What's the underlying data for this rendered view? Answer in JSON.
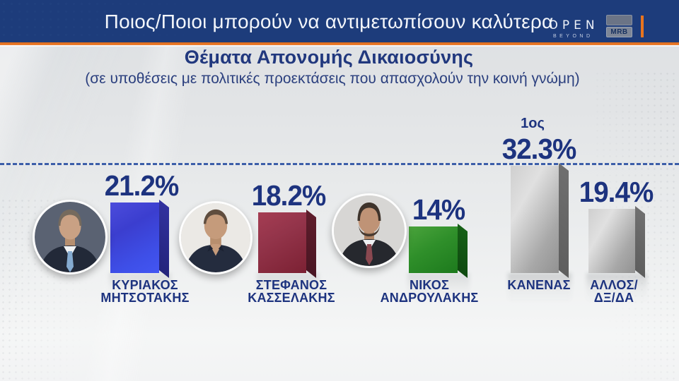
{
  "header": {
    "title": "Ποιος/Ποιοι  μπορούν να αντιμετωπίσουν καλύτερα",
    "open_logo": {
      "text": "OPEN",
      "subtext": "BEYOND"
    },
    "mrb_label": "MRB",
    "accent_color": "#e8741e",
    "background_color": "#1d3c7b"
  },
  "question": {
    "title": "Θέματα Απονομής Δικαιοσύνης",
    "subtitle": "(σε υποθέσεις με πολιτικές προεκτάσεις που απασχολούν την κοινή γνώμη)"
  },
  "chart_data": {
    "type": "bar",
    "title": "Θέματα Απονομής Δικαιοσύνης",
    "subtitle": "(σε υποθέσεις με πολιτικές προεκτάσεις που απασχολούν την κοινή γνώμη)",
    "categories": [
      "ΚΥΡΙΑΚΟΣ ΜΗΤΣΟΤΑΚΗΣ",
      "ΣΤΕΦΑΝΟΣ ΚΑΣΣΕΛΑΚΗΣ",
      "ΝΙΚΟΣ ΑΝΔΡΟΥΛΑΚΗΣ",
      "ΚΑΝΕΝΑΣ",
      "ΑΛΛΟΣ/ΔΞ/ΔΑ"
    ],
    "values": [
      21.2,
      18.2,
      14,
      32.3,
      19.4
    ],
    "value_labels": [
      "21.2%",
      "18.2%",
      "14%",
      "32.3%",
      "19.4%"
    ],
    "bar_colors": [
      "#3e4fe8",
      "#8e2e44",
      "#2e8f2a",
      "#b3b3b3",
      "#b3b3b3"
    ],
    "annotations": [
      {
        "category": "ΚΑΝΕΝΑΣ",
        "label": "1ος"
      }
    ],
    "ylim": [
      0,
      32.3
    ],
    "grid": false,
    "legend": false,
    "leader_line": "dashed line at maximum value 32.3"
  },
  "bars": [
    {
      "value_label": "21.2%",
      "name_line1": "ΚΥΡΙΑΚΟΣ",
      "name_line2": "ΜΗΤΣΟΤΑΚΗΣ"
    },
    {
      "value_label": "18.2%",
      "name_line1": "ΣΤΕΦΑΝΟΣ",
      "name_line2": "ΚΑΣΣΕΛΑΚΗΣ"
    },
    {
      "value_label": "14%",
      "name_line1": "ΝΙΚΟΣ",
      "name_line2": "ΑΝΔΡΟΥΛΑΚΗΣ"
    },
    {
      "value_label": "32.3%",
      "rank_label": "1ος",
      "name_line1": "ΚΑΝΕΝΑΣ",
      "name_line2": ""
    },
    {
      "value_label": "19.4%",
      "name_line1": "ΑΛΛΟΣ/",
      "name_line2": "ΔΞ/ΔΑ"
    }
  ],
  "text_color": "#1d337f"
}
